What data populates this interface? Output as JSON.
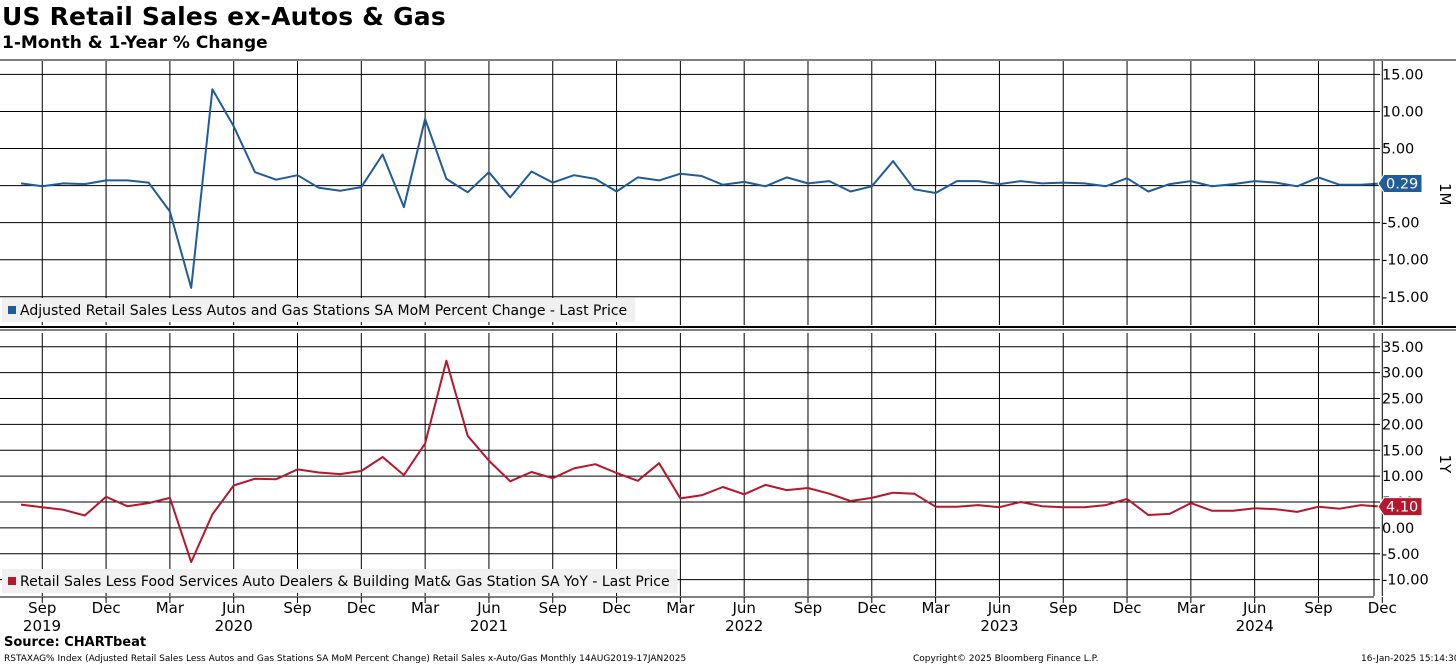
{
  "title": "US Retail Sales ex-Autos & Gas",
  "subtitle": "1-Month & 1-Year % Change",
  "source": "Source: CHARTbeat",
  "footer": {
    "left": "RSTAXAG% Index (Adjusted Retail Sales Less Autos and Gas Stations SA MoM Percent Change) Retail Sales x-Auto/Gas  Monthly 14AUG2019-17JAN2025",
    "center": "Copyright© 2025 Bloomberg Finance L.P.",
    "right": "16-Jan-2025 15:14:30"
  },
  "chart_data": [
    {
      "type": "line",
      "pane_label": "1M",
      "ylim": [
        -18,
        16
      ],
      "yticks": [
        -15,
        -10,
        -5,
        0,
        5,
        10,
        15
      ],
      "ytick_labels": [
        "-15.00",
        "-10.00",
        "-5.00",
        "",
        "5.00",
        "10.00",
        "15.00"
      ],
      "grid": true,
      "legend": "bottom-left",
      "series": [
        {
          "name": "Adjusted Retail Sales Less Autos and Gas Stations SA MoM Percent Change - Last Price",
          "color": "#1f5c99",
          "last_value_label": "0.29",
          "x": [
            "2019-08",
            "2019-09",
            "2019-10",
            "2019-11",
            "2019-12",
            "2020-01",
            "2020-02",
            "2020-03",
            "2020-04",
            "2020-05",
            "2020-06",
            "2020-07",
            "2020-08",
            "2020-09",
            "2020-10",
            "2020-11",
            "2020-12",
            "2021-01",
            "2021-02",
            "2021-03",
            "2021-04",
            "2021-05",
            "2021-06",
            "2021-07",
            "2021-08",
            "2021-09",
            "2021-10",
            "2021-11",
            "2021-12",
            "2022-01",
            "2022-02",
            "2022-03",
            "2022-04",
            "2022-05",
            "2022-06",
            "2022-07",
            "2022-08",
            "2022-09",
            "2022-10",
            "2022-11",
            "2022-12",
            "2023-01",
            "2023-02",
            "2023-03",
            "2023-04",
            "2023-05",
            "2023-06",
            "2023-07",
            "2023-08",
            "2023-09",
            "2023-10",
            "2023-11",
            "2023-12",
            "2024-01",
            "2024-02",
            "2024-03",
            "2024-04",
            "2024-05",
            "2024-06",
            "2024-07",
            "2024-08",
            "2024-09",
            "2024-10",
            "2024-11",
            "2024-12"
          ],
          "values": [
            0.3,
            -0.1,
            0.3,
            0.2,
            0.7,
            0.7,
            0.4,
            -3.5,
            -13.8,
            13.0,
            8.0,
            1.8,
            0.8,
            1.4,
            -0.3,
            -0.7,
            -0.2,
            4.2,
            -2.9,
            9.0,
            0.9,
            -0.9,
            1.8,
            -1.6,
            1.9,
            0.4,
            1.4,
            0.9,
            -0.8,
            1.1,
            0.7,
            1.6,
            1.3,
            0.1,
            0.5,
            -0.1,
            1.1,
            0.3,
            0.6,
            -0.8,
            -0.1,
            3.3,
            -0.5,
            -1.0,
            0.6,
            0.6,
            0.2,
            0.6,
            0.3,
            0.4,
            0.3,
            -0.1,
            1.0,
            -0.8,
            0.2,
            0.6,
            -0.1,
            0.2,
            0.6,
            0.4,
            -0.1,
            1.1,
            0.1,
            0.1,
            0.29
          ]
        }
      ]
    },
    {
      "type": "line",
      "pane_label": "1Y",
      "ylim": [
        -12,
        36.5
      ],
      "yticks": [
        -10,
        -5,
        0,
        5,
        10,
        15,
        20,
        25,
        30,
        35
      ],
      "ytick_labels": [
        "-10.00",
        "-5.00",
        "0.00",
        "5.00",
        "10.00",
        "15.00",
        "20.00",
        "25.00",
        "30.00",
        "35.00"
      ],
      "grid": true,
      "legend": "bottom-left",
      "series": [
        {
          "name": "Retail Sales Less Food Services Auto Dealers & Building Mat& Gas Station SA YoY - Last Price",
          "color": "#b5172d",
          "last_value_label": "4.10",
          "x": [
            "2019-08",
            "2019-09",
            "2019-10",
            "2019-11",
            "2019-12",
            "2020-01",
            "2020-02",
            "2020-03",
            "2020-04",
            "2020-05",
            "2020-06",
            "2020-07",
            "2020-08",
            "2020-09",
            "2020-10",
            "2020-11",
            "2020-12",
            "2021-01",
            "2021-02",
            "2021-03",
            "2021-04",
            "2021-05",
            "2021-06",
            "2021-07",
            "2021-08",
            "2021-09",
            "2021-10",
            "2021-11",
            "2021-12",
            "2022-01",
            "2022-02",
            "2022-03",
            "2022-04",
            "2022-05",
            "2022-06",
            "2022-07",
            "2022-08",
            "2022-09",
            "2022-10",
            "2022-11",
            "2022-12",
            "2023-01",
            "2023-02",
            "2023-03",
            "2023-04",
            "2023-05",
            "2023-06",
            "2023-07",
            "2023-08",
            "2023-09",
            "2023-10",
            "2023-11",
            "2023-12",
            "2024-01",
            "2024-02",
            "2024-03",
            "2024-04",
            "2024-05",
            "2024-06",
            "2024-07",
            "2024-08",
            "2024-09",
            "2024-10",
            "2024-11",
            "2024-12"
          ],
          "values": [
            4.5,
            4.0,
            3.5,
            2.4,
            6.0,
            4.2,
            4.8,
            5.8,
            -6.6,
            2.6,
            8.2,
            9.5,
            9.4,
            11.3,
            10.7,
            10.4,
            11.0,
            13.7,
            10.2,
            16.3,
            32.3,
            17.8,
            13.0,
            9.0,
            10.8,
            9.6,
            11.5,
            12.3,
            10.6,
            9.1,
            12.5,
            5.7,
            6.3,
            7.9,
            6.5,
            8.3,
            7.3,
            7.7,
            6.6,
            5.2,
            5.8,
            6.8,
            6.6,
            4.1,
            4.1,
            4.4,
            4.0,
            5.0,
            4.2,
            4.0,
            4.0,
            4.4,
            5.6,
            2.5,
            2.7,
            4.8,
            3.3,
            3.3,
            3.8,
            3.6,
            3.1,
            4.1,
            3.7,
            4.4,
            4.1
          ]
        }
      ]
    }
  ],
  "x_axis": {
    "month_labels": [
      {
        "date": "2019-09",
        "label": "Sep"
      },
      {
        "date": "2019-12",
        "label": "Dec"
      },
      {
        "date": "2020-03",
        "label": "Mar"
      },
      {
        "date": "2020-06",
        "label": "Jun"
      },
      {
        "date": "2020-09",
        "label": "Sep"
      },
      {
        "date": "2020-12",
        "label": "Dec"
      },
      {
        "date": "2021-03",
        "label": "Mar"
      },
      {
        "date": "2021-06",
        "label": "Jun"
      },
      {
        "date": "2021-09",
        "label": "Sep"
      },
      {
        "date": "2021-12",
        "label": "Dec"
      },
      {
        "date": "2022-03",
        "label": "Mar"
      },
      {
        "date": "2022-06",
        "label": "Jun"
      },
      {
        "date": "2022-09",
        "label": "Sep"
      },
      {
        "date": "2022-12",
        "label": "Dec"
      },
      {
        "date": "2023-03",
        "label": "Mar"
      },
      {
        "date": "2023-06",
        "label": "Jun"
      },
      {
        "date": "2023-09",
        "label": "Sep"
      },
      {
        "date": "2023-12",
        "label": "Dec"
      },
      {
        "date": "2024-03",
        "label": "Mar"
      },
      {
        "date": "2024-06",
        "label": "Jun"
      },
      {
        "date": "2024-09",
        "label": "Sep"
      },
      {
        "date": "2024-12",
        "label": "Dec"
      }
    ],
    "year_labels": [
      {
        "date": "2019-08",
        "label": "2019"
      },
      {
        "date": "2020-06",
        "label": "2020"
      },
      {
        "date": "2021-06",
        "label": "2021"
      },
      {
        "date": "2022-06",
        "label": "2022"
      },
      {
        "date": "2023-06",
        "label": "2023"
      },
      {
        "date": "2024-06",
        "label": "2024"
      }
    ]
  }
}
